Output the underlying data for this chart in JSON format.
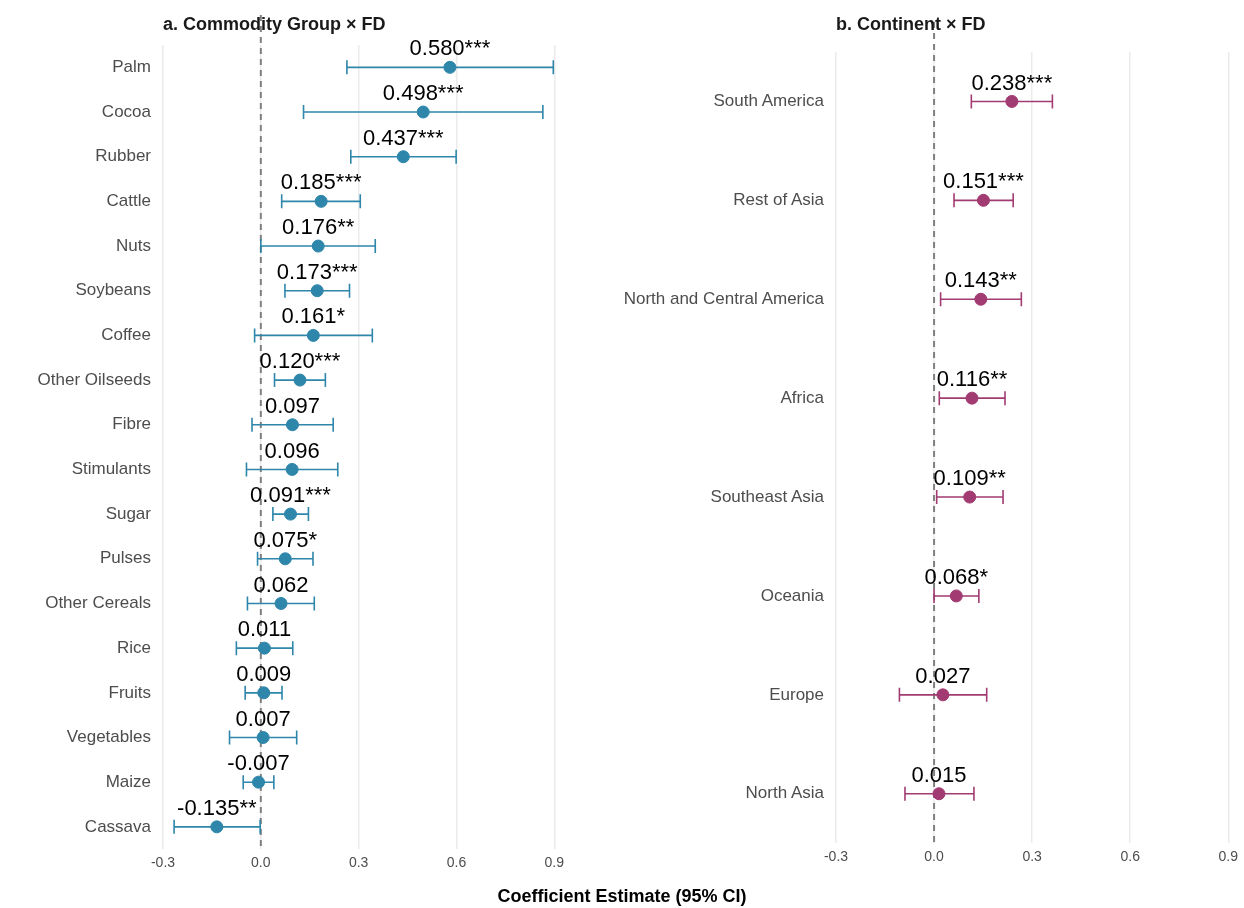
{
  "chart_data": [
    {
      "type": "scatter",
      "orientation": "horizontal",
      "title": "a. Commodity Group × FD",
      "xlabel": "Coefficient Estimate (95% CI)",
      "categories": [
        "Palm",
        "Cocoa",
        "Rubber",
        "Cattle",
        "Nuts",
        "Soybeans",
        "Coffee",
        "Other Oilseeds",
        "Fibre",
        "Stimulants",
        "Sugar",
        "Pulses",
        "Other Cereals",
        "Rice",
        "Fruits",
        "Vegetables",
        "Maize",
        "Cassava"
      ],
      "series": [
        {
          "color": "#2e86ab",
          "values": [
            0.58,
            0.498,
            0.437,
            0.185,
            0.176,
            0.173,
            0.161,
            0.12,
            0.097,
            0.096,
            0.091,
            0.075,
            0.062,
            0.011,
            0.009,
            0.007,
            -0.007,
            -0.135
          ],
          "errors": [
            [
              0.264,
              0.897
            ],
            [
              0.131,
              0.865
            ],
            [
              0.276,
              0.599
            ],
            [
              0.064,
              0.305
            ],
            [
              0.0,
              0.351
            ],
            [
              0.074,
              0.272
            ],
            [
              -0.019,
              0.342
            ],
            [
              0.042,
              0.198
            ],
            [
              -0.027,
              0.222
            ],
            [
              -0.044,
              0.236
            ],
            [
              0.037,
              0.146
            ],
            [
              -0.01,
              0.16
            ],
            [
              -0.041,
              0.164
            ],
            [
              -0.075,
              0.098
            ],
            [
              -0.048,
              0.065
            ],
            [
              -0.096,
              0.11
            ],
            [
              -0.054,
              0.04
            ],
            [
              -0.266,
              -0.002
            ]
          ],
          "value_labels": [
            "0.580***",
            "0.498***",
            "0.437***",
            "0.185***",
            "0.176**",
            "0.173***",
            "0.161*",
            "0.120***",
            "0.097",
            "0.096",
            "0.091***",
            "0.075*",
            "0.062",
            "0.011",
            "0.009",
            "0.007",
            "-0.007",
            "-0.135**"
          ]
        }
      ],
      "xlim": [
        -0.3,
        0.9
      ],
      "xticks": [
        -0.3,
        {
          "value": 0,
          "label": "0.0"
        },
        0.3,
        0.6,
        0.9
      ],
      "ref_lines": [
        {
          "axis": "x",
          "value": 0,
          "color": "#808080",
          "line_style": "dashed"
        }
      ],
      "grid": "x",
      "legend": false,
      "marker": "circle"
    },
    {
      "type": "scatter",
      "orientation": "horizontal",
      "title": "b. Continent × FD",
      "categories": [
        "South America",
        "Rest of Asia",
        "North and Central America",
        "Africa",
        "Southeast Asia",
        "Oceania",
        "Europe",
        "North Asia"
      ],
      "series": [
        {
          "color": "#a23b72",
          "values": [
            0.238,
            0.151,
            0.143,
            0.116,
            0.109,
            0.068,
            0.027,
            0.015
          ],
          "errors": [
            [
              0.114,
              0.362
            ],
            [
              0.061,
              0.242
            ],
            [
              0.02,
              0.267
            ],
            [
              0.016,
              0.217
            ],
            [
              0.008,
              0.211
            ],
            [
              0.0,
              0.137
            ],
            [
              -0.106,
              0.161
            ],
            [
              -0.089,
              0.122
            ]
          ],
          "value_labels": [
            "0.238***",
            "0.151***",
            "0.143**",
            "0.116**",
            "0.109**",
            "0.068*",
            "0.027",
            "0.015"
          ]
        }
      ],
      "xlim": [
        -0.3,
        0.9
      ],
      "xticks": [
        -0.3,
        {
          "value": 0,
          "label": "0.0"
        },
        0.3,
        0.6,
        0.9
      ],
      "ref_lines": [
        {
          "axis": "x",
          "value": 0,
          "color": "#808080",
          "line_style": "dashed"
        }
      ],
      "grid": "x",
      "legend": false,
      "marker": "circle"
    }
  ]
}
